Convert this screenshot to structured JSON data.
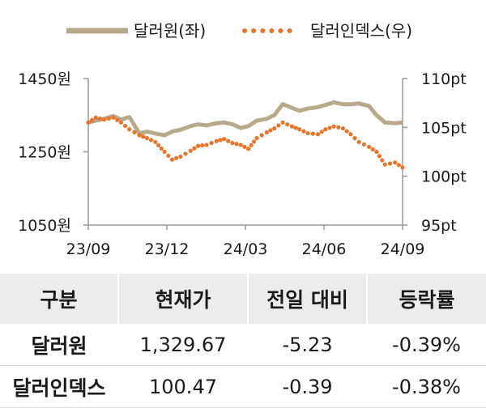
{
  "chart_data": {
    "type": "line",
    "legend": {
      "placement": "top",
      "items": [
        {
          "label": "달러원(좌)",
          "style": "solid",
          "color": "#b8a98a"
        },
        {
          "label": "달러인덱스(우)",
          "style": "dotted",
          "color": "#e8752a"
        }
      ]
    },
    "x_tick_labels": [
      "23/09",
      "23/12",
      "24/03",
      "24/06",
      "24/09"
    ],
    "x_range": [
      "2023-09-01",
      "2024-09-10"
    ],
    "y_left": {
      "ticks": [
        1050,
        1250,
        1450
      ],
      "tick_labels": [
        "1050원",
        "1250원",
        "1450원"
      ],
      "range": [
        1050,
        1450
      ]
    },
    "y_right": {
      "ticks": [
        95,
        100,
        105,
        110
      ],
      "tick_labels": [
        "95pt",
        "100pt",
        "105pt",
        "110pt"
      ],
      "range": [
        95,
        110
      ]
    },
    "grid": false,
    "series": [
      {
        "name": "달러원(좌)",
        "axis": "left",
        "color": "#b8a98a",
        "x": [
          "2023-09-01",
          "2023-09-10",
          "2023-09-20",
          "2023-10-01",
          "2023-10-10",
          "2023-10-20",
          "2023-11-01",
          "2023-11-10",
          "2023-11-20",
          "2023-12-01",
          "2023-12-10",
          "2023-12-20",
          "2024-01-01",
          "2024-01-10",
          "2024-01-20",
          "2024-02-01",
          "2024-02-10",
          "2024-02-20",
          "2024-03-01",
          "2024-03-10",
          "2024-03-20",
          "2024-04-01",
          "2024-04-10",
          "2024-04-20",
          "2024-05-01",
          "2024-05-10",
          "2024-05-20",
          "2024-06-01",
          "2024-06-10",
          "2024-06-20",
          "2024-07-01",
          "2024-07-10",
          "2024-07-20",
          "2024-08-01",
          "2024-08-10",
          "2024-08-20",
          "2024-09-01",
          "2024-09-10"
        ],
        "values": [
          1330,
          1335,
          1340,
          1348,
          1338,
          1345,
          1300,
          1305,
          1300,
          1295,
          1305,
          1310,
          1320,
          1325,
          1322,
          1328,
          1330,
          1325,
          1315,
          1320,
          1335,
          1340,
          1350,
          1380,
          1370,
          1362,
          1368,
          1372,
          1378,
          1385,
          1380,
          1380,
          1382,
          1375,
          1350,
          1330,
          1328,
          1330
        ]
      },
      {
        "name": "달러인덱스(우)",
        "axis": "right",
        "color": "#e8752a",
        "x": [
          "2023-09-01",
          "2023-09-10",
          "2023-09-20",
          "2023-10-01",
          "2023-10-10",
          "2023-10-20",
          "2023-11-01",
          "2023-11-10",
          "2023-11-20",
          "2023-12-01",
          "2023-12-10",
          "2023-12-20",
          "2024-01-01",
          "2024-01-10",
          "2024-01-20",
          "2024-02-01",
          "2024-02-10",
          "2024-02-20",
          "2024-03-01",
          "2024-03-10",
          "2024-03-20",
          "2024-04-01",
          "2024-04-10",
          "2024-04-20",
          "2024-05-01",
          "2024-05-10",
          "2024-05-20",
          "2024-06-01",
          "2024-06-10",
          "2024-06-20",
          "2024-07-01",
          "2024-07-10",
          "2024-07-20",
          "2024-08-01",
          "2024-08-10",
          "2024-08-20",
          "2024-09-01",
          "2024-09-10"
        ],
        "values": [
          105.5,
          106,
          105.8,
          106,
          105.5,
          104.8,
          104.2,
          103.9,
          103.5,
          102.5,
          101.7,
          102.0,
          102.6,
          103.1,
          103.2,
          103.6,
          103.8,
          103.4,
          103.2,
          102.8,
          103.9,
          104.5,
          104.9,
          105.5,
          105.1,
          104.8,
          104.4,
          104.3,
          104.8,
          105.1,
          104.9,
          104.3,
          103.5,
          103.0,
          102.5,
          101.2,
          101.4,
          100.9
        ]
      }
    ]
  },
  "table": {
    "headers": [
      "구분",
      "현재가",
      "전일 대비",
      "등락률"
    ],
    "rows": [
      [
        "달러원",
        "1,329.67",
        "-5.23",
        "-0.39%"
      ],
      [
        "달러인덱스",
        "100.47",
        "-0.39",
        "-0.38%"
      ]
    ]
  }
}
